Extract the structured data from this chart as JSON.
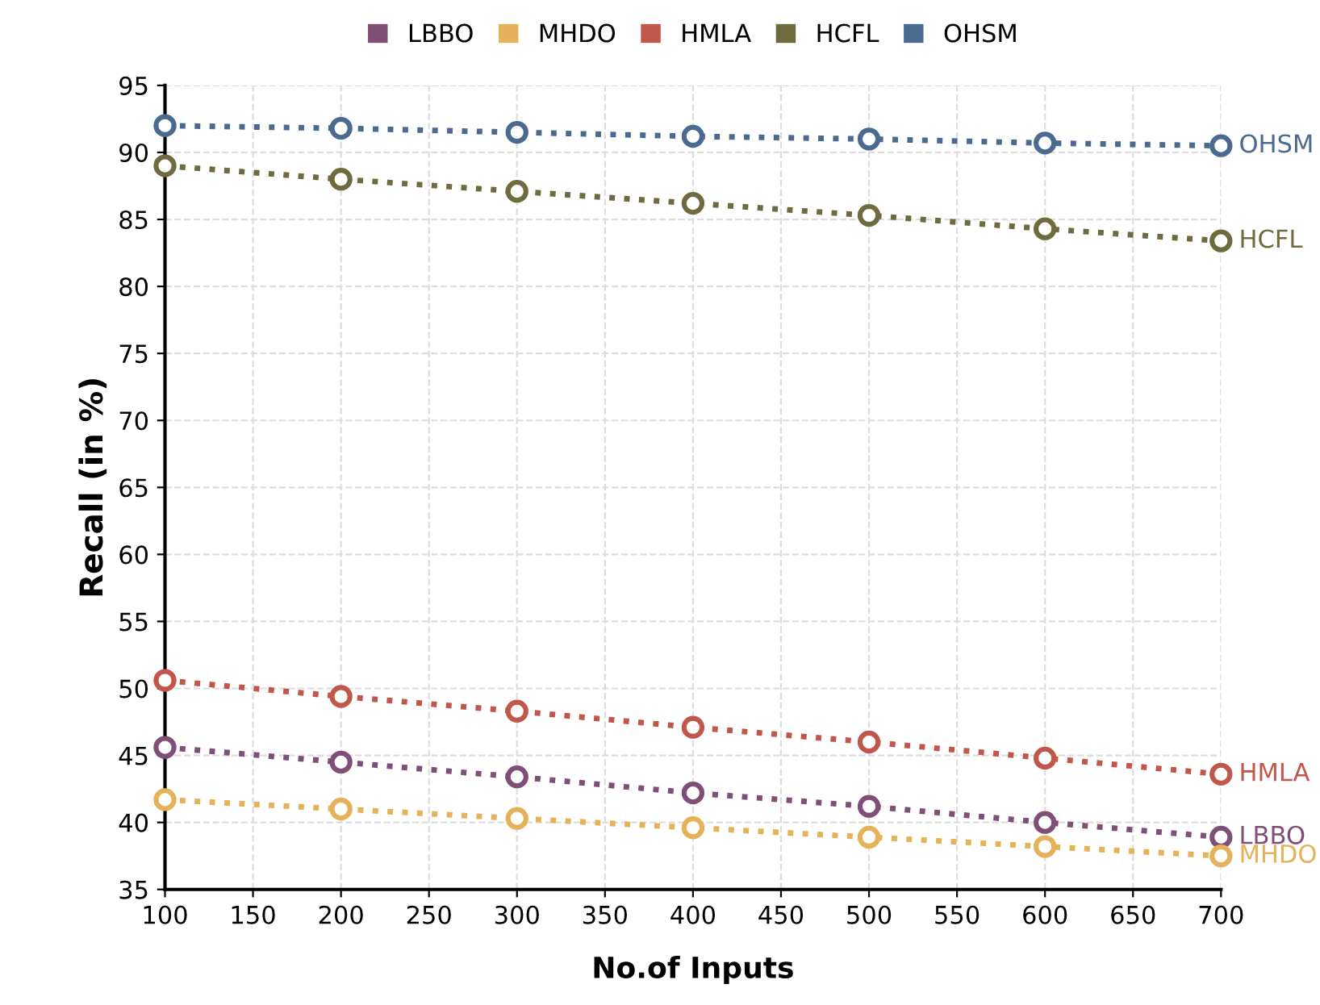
{
  "chart_data": {
    "type": "line",
    "xlabel": "No.of Inputs",
    "ylabel": "Recall (in %)",
    "x": [
      100,
      200,
      300,
      400,
      500,
      600,
      700
    ],
    "series": [
      {
        "name": "LBBO",
        "color": "#7f4f78",
        "values": [
          45.6,
          44.5,
          43.4,
          42.2,
          41.2,
          40.0,
          38.9
        ]
      },
      {
        "name": "MHDO",
        "color": "#e5b25a",
        "values": [
          41.7,
          41.0,
          40.3,
          39.6,
          38.9,
          38.2,
          37.5
        ]
      },
      {
        "name": "HMLA",
        "color": "#c0574a",
        "values": [
          50.6,
          49.4,
          48.3,
          47.1,
          46.0,
          44.8,
          43.6
        ]
      },
      {
        "name": "HCFL",
        "color": "#6f6b3e",
        "values": [
          89.0,
          88.0,
          87.1,
          86.2,
          85.3,
          84.3,
          83.4
        ]
      },
      {
        "name": "OHSM",
        "color": "#4a6a90",
        "values": [
          92.0,
          91.8,
          91.5,
          91.2,
          91.0,
          90.7,
          90.5
        ]
      }
    ],
    "xlim": [
      100,
      700
    ],
    "xticks": [
      100,
      150,
      200,
      250,
      300,
      350,
      400,
      450,
      500,
      550,
      600,
      650,
      700
    ],
    "ylim": [
      35,
      95
    ],
    "yticks": [
      35,
      40,
      45,
      50,
      55,
      60,
      65,
      70,
      75,
      80,
      85,
      90,
      95
    ],
    "grid": true,
    "legend": "top",
    "marker": "circle",
    "line_style": "dotted"
  }
}
